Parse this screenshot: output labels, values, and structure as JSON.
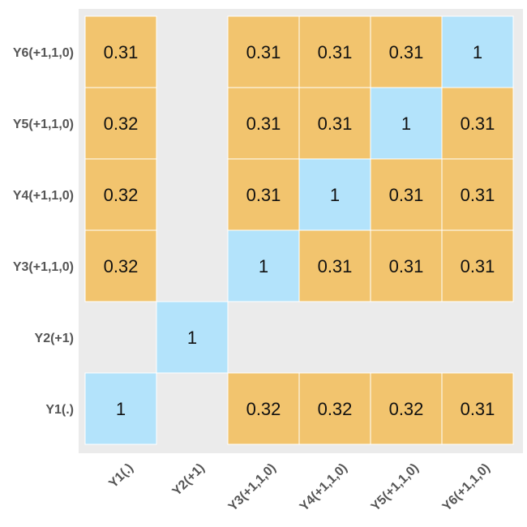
{
  "chart_data": {
    "type": "heatmap",
    "title": "",
    "xlabel": "",
    "ylabel": "",
    "x_categories": [
      "Y1(.)",
      "Y2(+1)",
      "Y3(+1,1,0)",
      "Y4(+1,1,0)",
      "Y5(+1,1,0)",
      "Y6(+1,1,0)"
    ],
    "y_categories": [
      "Y1(.)",
      "Y2(+1)",
      "Y3(+1,1,0)",
      "Y4(+1,1,0)",
      "Y5(+1,1,0)",
      "Y6(+1,1,0)"
    ],
    "values": [
      [
        1,
        null,
        0.32,
        0.32,
        0.32,
        0.31
      ],
      [
        null,
        1,
        null,
        null,
        null,
        null
      ],
      [
        0.32,
        null,
        1,
        0.31,
        0.31,
        0.31
      ],
      [
        0.32,
        null,
        0.31,
        1,
        0.31,
        0.31
      ],
      [
        0.32,
        null,
        0.31,
        0.31,
        1,
        0.31
      ],
      [
        0.31,
        null,
        0.31,
        0.31,
        0.31,
        1
      ]
    ],
    "colors": {
      "diagonal": "#b3e3fb",
      "off_diagonal": "#f2c46e",
      "panel_background": "#ebebeb",
      "cell_border": "#ffffff"
    },
    "grid": false,
    "legend": "none"
  }
}
